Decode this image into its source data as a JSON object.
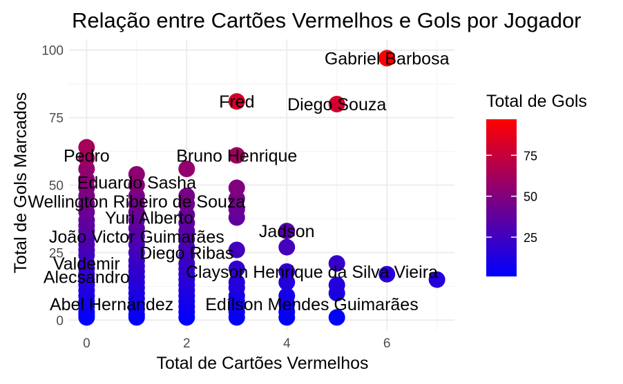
{
  "chart_data": {
    "type": "scatter",
    "title": "Relação entre Cartões Vermelhos e Gols por Jogador",
    "xlabel": "Total de Cartões Vermelhos",
    "ylabel": "Total de Gols Marcados",
    "xlim": [
      -0.35,
      7.35
    ],
    "ylim": [
      -4,
      104
    ],
    "x_ticks": [
      0,
      2,
      4,
      6
    ],
    "y_ticks": [
      0,
      25,
      50,
      75,
      100
    ],
    "grid": true,
    "legend": {
      "title": "Total de Gols",
      "placement": "right",
      "ticks": [
        25,
        50,
        75
      ],
      "range": [
        1,
        97
      ],
      "color_low": "#0000ff",
      "color_high": "#ff0000"
    },
    "points": [
      {
        "x": 0,
        "y": 1
      },
      {
        "x": 0,
        "y": 2
      },
      {
        "x": 0,
        "y": 3
      },
      {
        "x": 0,
        "y": 5
      },
      {
        "x": 0,
        "y": 7
      },
      {
        "x": 0,
        "y": 9
      },
      {
        "x": 0,
        "y": 11
      },
      {
        "x": 0,
        "y": 13
      },
      {
        "x": 0,
        "y": 15
      },
      {
        "x": 0,
        "y": 17
      },
      {
        "x": 0,
        "y": 19
      },
      {
        "x": 0,
        "y": 21
      },
      {
        "x": 0,
        "y": 24
      },
      {
        "x": 0,
        "y": 26
      },
      {
        "x": 0,
        "y": 28
      },
      {
        "x": 0,
        "y": 30
      },
      {
        "x": 0,
        "y": 33
      },
      {
        "x": 0,
        "y": 35
      },
      {
        "x": 0,
        "y": 37
      },
      {
        "x": 0,
        "y": 40
      },
      {
        "x": 0,
        "y": 43
      },
      {
        "x": 0,
        "y": 46
      },
      {
        "x": 0,
        "y": 49
      },
      {
        "x": 0,
        "y": 52
      },
      {
        "x": 0,
        "y": 56
      },
      {
        "x": 0,
        "y": 60
      },
      {
        "x": 0,
        "y": 64
      },
      {
        "x": 1,
        "y": 1
      },
      {
        "x": 1,
        "y": 2
      },
      {
        "x": 1,
        "y": 4
      },
      {
        "x": 1,
        "y": 6
      },
      {
        "x": 1,
        "y": 8
      },
      {
        "x": 1,
        "y": 10
      },
      {
        "x": 1,
        "y": 12
      },
      {
        "x": 1,
        "y": 14
      },
      {
        "x": 1,
        "y": 16
      },
      {
        "x": 1,
        "y": 18
      },
      {
        "x": 1,
        "y": 20
      },
      {
        "x": 1,
        "y": 22
      },
      {
        "x": 1,
        "y": 25
      },
      {
        "x": 1,
        "y": 28
      },
      {
        "x": 1,
        "y": 31
      },
      {
        "x": 1,
        "y": 34
      },
      {
        "x": 1,
        "y": 37
      },
      {
        "x": 1,
        "y": 40
      },
      {
        "x": 1,
        "y": 43
      },
      {
        "x": 1,
        "y": 46
      },
      {
        "x": 1,
        "y": 50
      },
      {
        "x": 1,
        "y": 54
      },
      {
        "x": 2,
        "y": 1
      },
      {
        "x": 2,
        "y": 3
      },
      {
        "x": 2,
        "y": 5
      },
      {
        "x": 2,
        "y": 7
      },
      {
        "x": 2,
        "y": 9
      },
      {
        "x": 2,
        "y": 11
      },
      {
        "x": 2,
        "y": 13
      },
      {
        "x": 2,
        "y": 15
      },
      {
        "x": 2,
        "y": 17
      },
      {
        "x": 2,
        "y": 19
      },
      {
        "x": 2,
        "y": 21
      },
      {
        "x": 2,
        "y": 24
      },
      {
        "x": 2,
        "y": 27
      },
      {
        "x": 2,
        "y": 30
      },
      {
        "x": 2,
        "y": 33
      },
      {
        "x": 2,
        "y": 36
      },
      {
        "x": 2,
        "y": 39
      },
      {
        "x": 2,
        "y": 43
      },
      {
        "x": 2,
        "y": 46
      },
      {
        "x": 2,
        "y": 56
      },
      {
        "x": 3,
        "y": 1
      },
      {
        "x": 3,
        "y": 3
      },
      {
        "x": 3,
        "y": 5
      },
      {
        "x": 3,
        "y": 7
      },
      {
        "x": 3,
        "y": 9
      },
      {
        "x": 3,
        "y": 12
      },
      {
        "x": 3,
        "y": 14
      },
      {
        "x": 3,
        "y": 19
      },
      {
        "x": 3,
        "y": 26
      },
      {
        "x": 3,
        "y": 38
      },
      {
        "x": 3,
        "y": 41
      },
      {
        "x": 3,
        "y": 45
      },
      {
        "x": 3,
        "y": 49
      },
      {
        "x": 3,
        "y": 61
      },
      {
        "x": 3,
        "y": 81
      },
      {
        "x": 4,
        "y": 1
      },
      {
        "x": 4,
        "y": 3
      },
      {
        "x": 4,
        "y": 6
      },
      {
        "x": 4,
        "y": 9
      },
      {
        "x": 4,
        "y": 14
      },
      {
        "x": 4,
        "y": 18
      },
      {
        "x": 4,
        "y": 27
      },
      {
        "x": 4,
        "y": 33
      },
      {
        "x": 5,
        "y": 1
      },
      {
        "x": 5,
        "y": 10
      },
      {
        "x": 5,
        "y": 13
      },
      {
        "x": 5,
        "y": 21
      },
      {
        "x": 5,
        "y": 80
      },
      {
        "x": 6,
        "y": 17
      },
      {
        "x": 6,
        "y": 97
      },
      {
        "x": 7,
        "y": 15
      }
    ],
    "labels": [
      {
        "text": "Gabriel Barbosa",
        "x": 6,
        "y": 97
      },
      {
        "text": "Fred",
        "x": 3,
        "y": 81
      },
      {
        "text": "Diego Souza",
        "x": 5,
        "y": 80
      },
      {
        "text": "Pedro",
        "x": 0,
        "y": 61
      },
      {
        "text": "Bruno Henrique",
        "x": 3,
        "y": 61
      },
      {
        "text": "Eduardo Sasha",
        "x": 1,
        "y": 51
      },
      {
        "text": "Wellington Ribeiro de Souza",
        "x": 1,
        "y": 44
      },
      {
        "text": "Yuri Alberto",
        "x": 1.25,
        "y": 38
      },
      {
        "text": "Jadson",
        "x": 4,
        "y": 33
      },
      {
        "text": "João Victor Guimarães",
        "x": 1,
        "y": 31
      },
      {
        "text": "Diego Ribas",
        "x": 2,
        "y": 25
      },
      {
        "text": "Valdemir",
        "x": 0,
        "y": 21
      },
      {
        "text": "Clayson Henrique da Silva Vieira",
        "x": 4.5,
        "y": 18
      },
      {
        "text": "Alecsandro",
        "x": 0,
        "y": 16
      },
      {
        "text": "Abel Hernández",
        "x": 0.5,
        "y": 6
      },
      {
        "text": "Edílson Mendes Guimarães",
        "x": 4.5,
        "y": 6
      }
    ]
  }
}
